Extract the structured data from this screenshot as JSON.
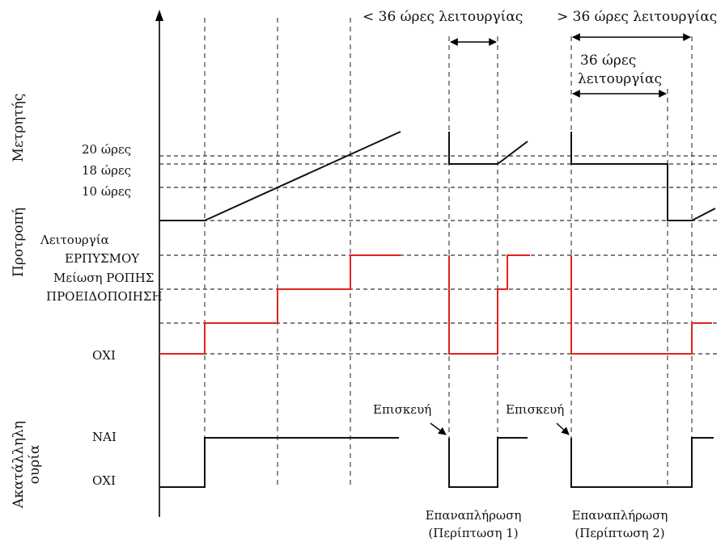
{
  "axes": {
    "meter": "Μετρητής",
    "alarm": "Προτροπή",
    "fault": "Ακατάλληλη ουρία",
    "fault_line1": "Ακατάλληλη",
    "fault_line2": "ουρία"
  },
  "meter_levels": [
    "20 ώρες",
    "18 ώρες",
    "10 ώρες"
  ],
  "alarm_levels": [
    "Λειτουργία",
    "ΕΡΠΥΣΜΟΥ",
    "Μείωση ΡΟΠΗΣ",
    "ΠΡΟΕΙΔΟΠΟΙΗΣΗ",
    "ΟΧΙ"
  ],
  "fault_levels": [
    "ΝΑΙ",
    "ΟΧΙ"
  ],
  "headers": {
    "less": "< 36 ώρες λειτουργίας",
    "more": "> 36 ώρες λειτουργίας",
    "inner_line1": "36 ώρες",
    "inner_line2": "λειτουργίας"
  },
  "events": {
    "repair1": "Επισκευή",
    "repair2": "Επισκευή",
    "case1_line1": "Επαναπλήρωση",
    "case1_line2": "(Περίπτωση 1)",
    "case2_line1": "Επαναπλήρωση",
    "case2_line2": "(Περίπτωση 2)"
  },
  "colors": {
    "alarm_trace": "#e0231f",
    "traces": "#111111"
  }
}
